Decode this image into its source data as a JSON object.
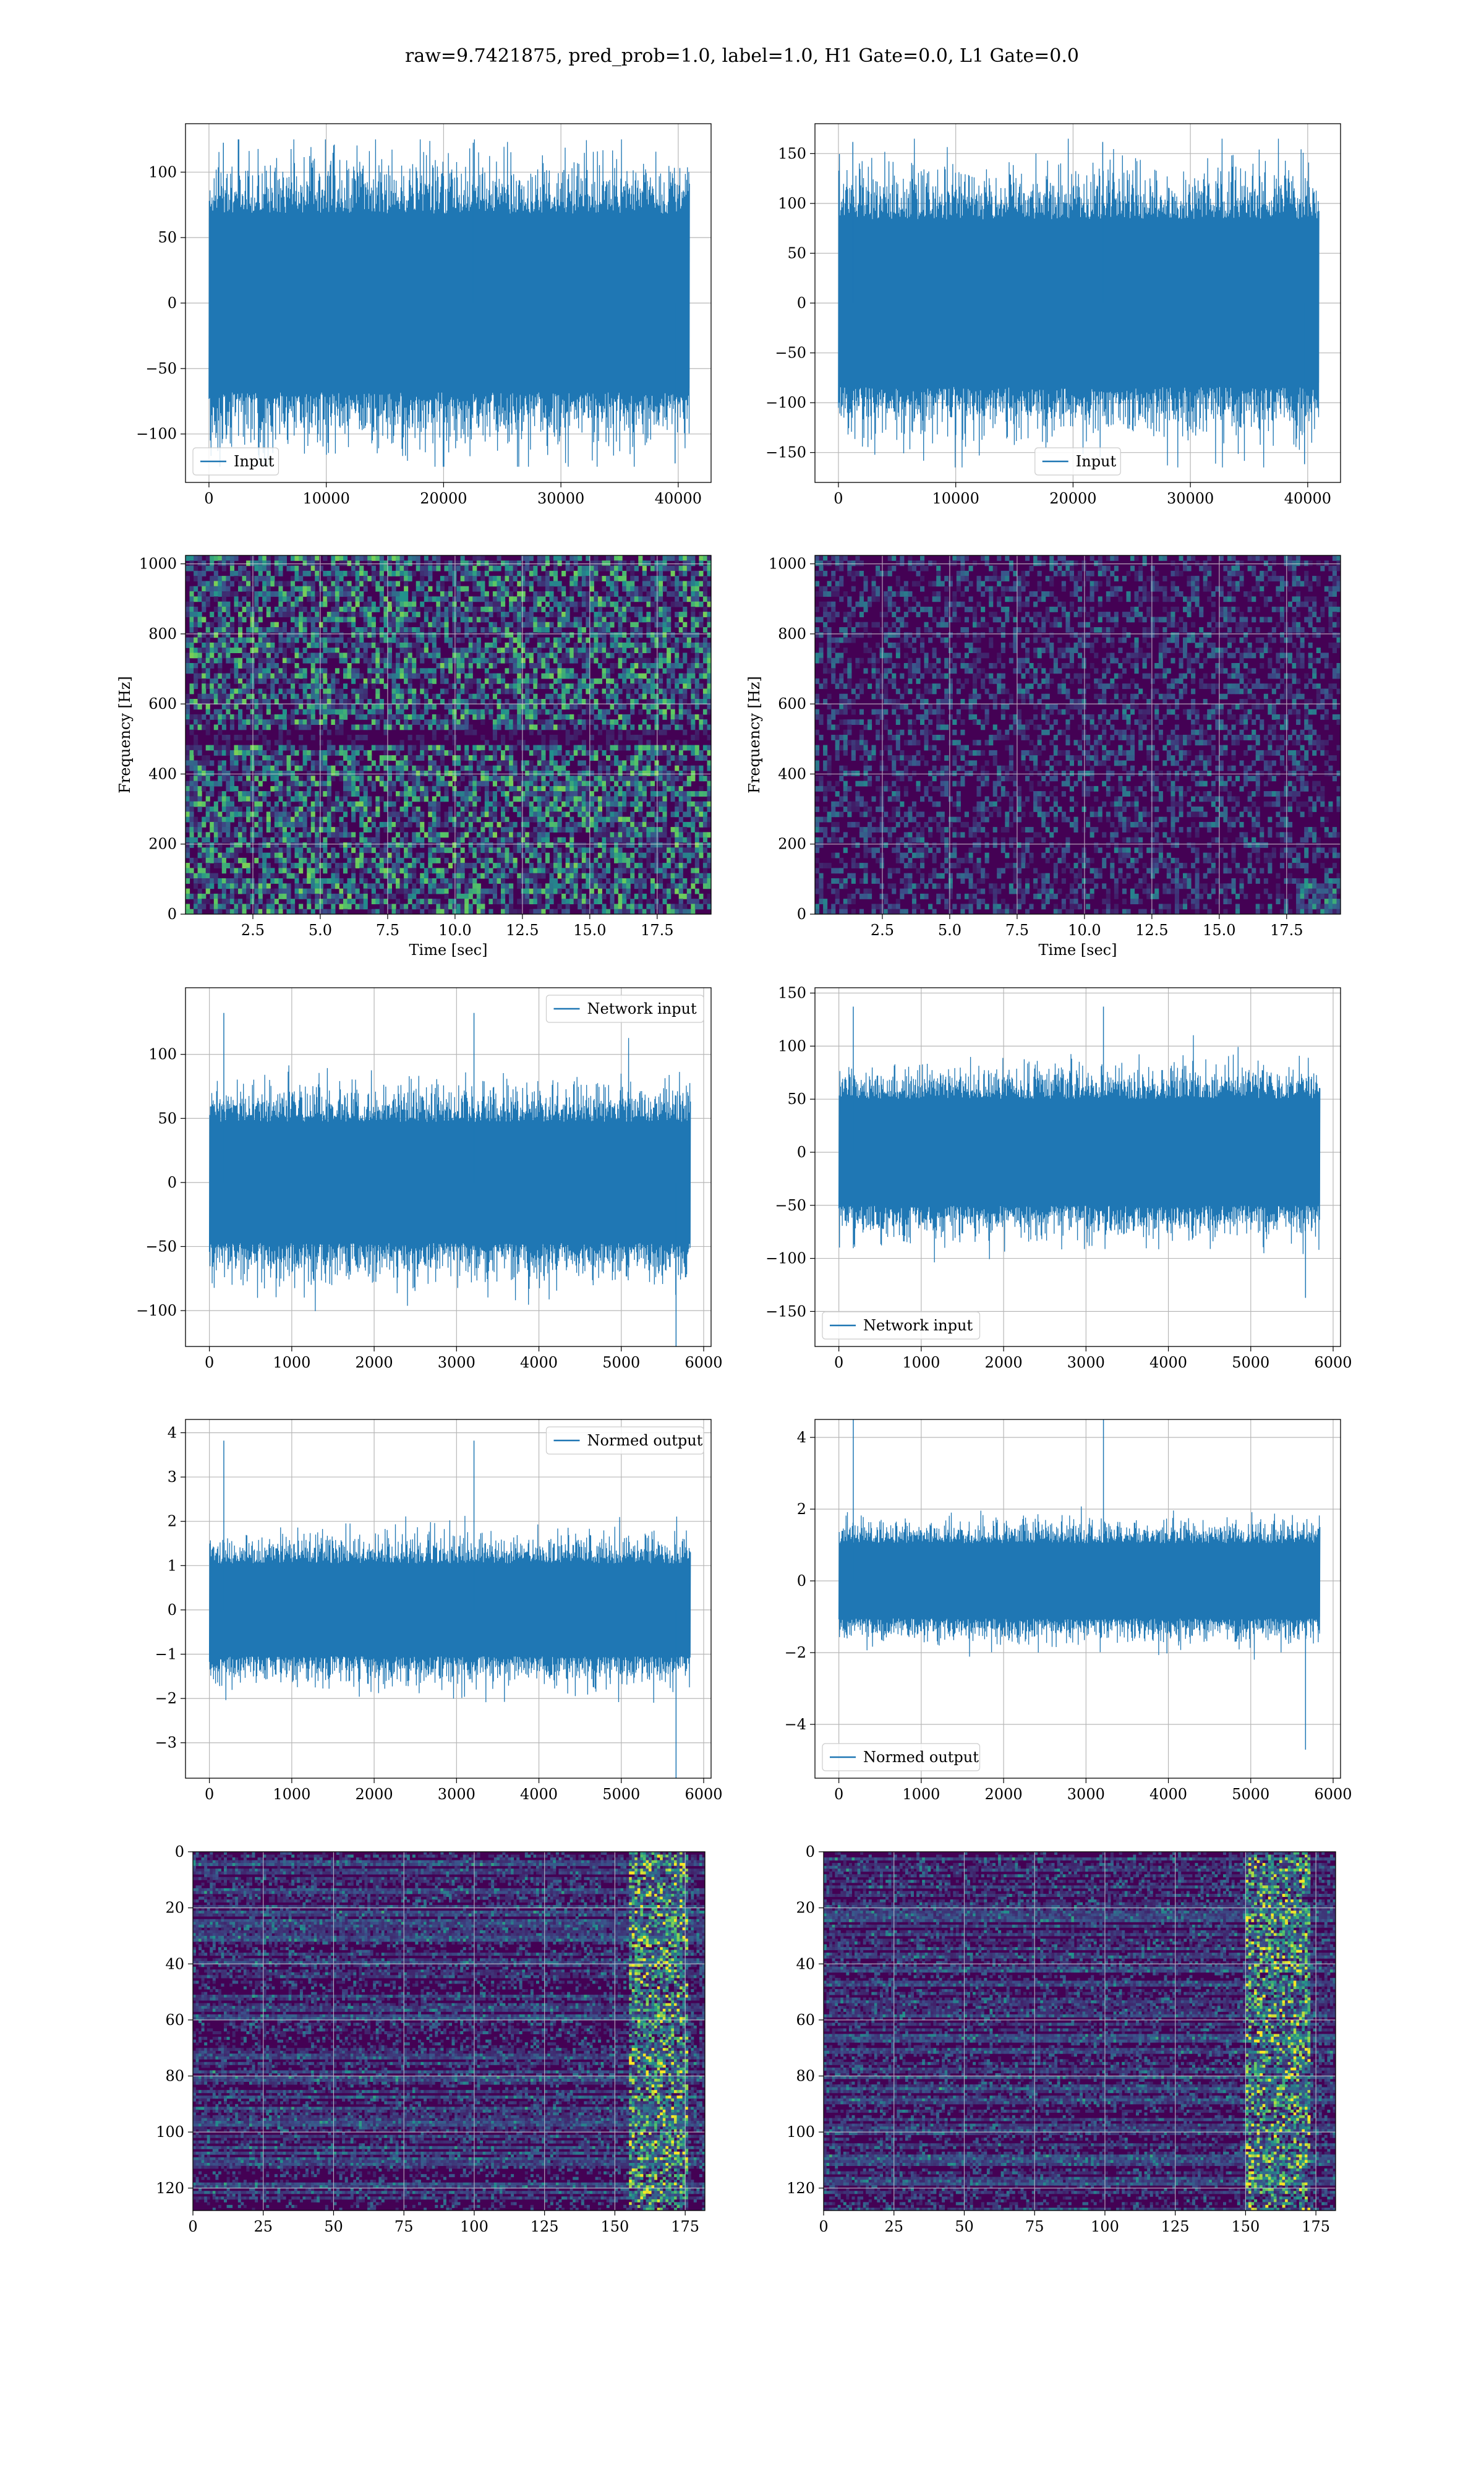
{
  "figure": {
    "suptitle": "raw=9.7421875, pred_prob=1.0, label=1.0, H1 Gate=0.0, L1 Gate=0.0"
  },
  "colors": {
    "line": "#1f77b4",
    "grid": "#b0b0b0",
    "axes": "#000000",
    "viridis": [
      "#440154",
      "#3b528b",
      "#21918c",
      "#5ec962",
      "#fde725"
    ]
  },
  "chart_data": [
    {
      "id": "ts-h1-input",
      "type": "line",
      "legend": "Input",
      "legend_loc": "lower left",
      "xlim": [
        -2000,
        42800
      ],
      "ylim": [
        -137,
        137
      ],
      "n": 40960,
      "xticks": [
        0,
        10000,
        20000,
        30000,
        40000
      ],
      "xtick_labels": [
        "0",
        "10000",
        "20000",
        "30000",
        "40000"
      ],
      "yticks": [
        -100,
        -50,
        0,
        50,
        100
      ],
      "ytick_labels": [
        "−100",
        "−50",
        "0",
        "50",
        "100"
      ],
      "band": 65,
      "peak": 125,
      "grid": true
    },
    {
      "id": "ts-l1-input",
      "type": "line",
      "legend": "Input",
      "legend_loc": "lower center",
      "xlim": [
        -2000,
        42800
      ],
      "ylim": [
        -180,
        180
      ],
      "n": 40960,
      "xticks": [
        0,
        10000,
        20000,
        30000,
        40000
      ],
      "xtick_labels": [
        "0",
        "10000",
        "20000",
        "30000",
        "40000"
      ],
      "yticks": [
        -150,
        -100,
        -50,
        0,
        50,
        100,
        150
      ],
      "ytick_labels": [
        "−150",
        "−100",
        "−50",
        "0",
        "50",
        "100",
        "150"
      ],
      "band": 80,
      "peak": 165,
      "grid": true
    },
    {
      "id": "spec-h1",
      "type": "heatmap",
      "xlabel": "Time [sec]",
      "ylabel": "Frequency [Hz]",
      "xlim": [
        0,
        19.5
      ],
      "ylim": [
        0,
        1024
      ],
      "colormap": "viridis",
      "xticks": [
        2.5,
        5.0,
        7.5,
        10.0,
        12.5,
        15.0,
        17.5
      ],
      "xtick_labels": [
        "2.5",
        "5.0",
        "7.5",
        "10.0",
        "12.5",
        "15.0",
        "17.5"
      ],
      "yticks": [
        0,
        200,
        400,
        600,
        800,
        1000
      ],
      "ytick_labels": [
        "0",
        "200",
        "400",
        "600",
        "800",
        "1000"
      ],
      "grid": true,
      "intensity": "high",
      "dark_band_hz": [
        480,
        520
      ]
    },
    {
      "id": "spec-l1",
      "type": "heatmap",
      "xlabel": "Time [sec]",
      "ylabel": "Frequency [Hz]",
      "xlim": [
        0,
        19.5
      ],
      "ylim": [
        0,
        1024
      ],
      "colormap": "viridis",
      "xticks": [
        2.5,
        5.0,
        7.5,
        10.0,
        12.5,
        15.0,
        17.5
      ],
      "xtick_labels": [
        "2.5",
        "5.0",
        "7.5",
        "10.0",
        "12.5",
        "15.0",
        "17.5"
      ],
      "yticks": [
        0,
        200,
        400,
        600,
        800,
        1000
      ],
      "ytick_labels": [
        "0",
        "200",
        "400",
        "600",
        "800",
        "1000"
      ],
      "grid": true,
      "intensity": "low"
    },
    {
      "id": "ts-h1-net",
      "type": "line",
      "legend": "Network input",
      "legend_loc": "upper right",
      "xlim": [
        -290,
        6090
      ],
      "ylim": [
        -128,
        152
      ],
      "n": 5840,
      "xticks": [
        0,
        1000,
        2000,
        3000,
        4000,
        5000,
        6000
      ],
      "xtick_labels": [
        "0",
        "1000",
        "2000",
        "3000",
        "4000",
        "5000",
        "6000"
      ],
      "yticks": [
        -100,
        -50,
        0,
        50,
        100
      ],
      "ytick_labels": [
        "−100",
        "−50",
        "0",
        "50",
        "100"
      ],
      "band": 45,
      "peak": 135,
      "grid": true
    },
    {
      "id": "ts-l1-net",
      "type": "line",
      "legend": "Network input",
      "legend_loc": "lower left",
      "xlim": [
        -290,
        6090
      ],
      "ylim": [
        -183,
        155
      ],
      "n": 5840,
      "xticks": [
        0,
        1000,
        2000,
        3000,
        4000,
        5000,
        6000
      ],
      "xtick_labels": [
        "0",
        "1000",
        "2000",
        "3000",
        "4000",
        "5000",
        "6000"
      ],
      "yticks": [
        -150,
        -100,
        -50,
        0,
        50,
        100,
        150
      ],
      "ytick_labels": [
        "−150",
        "−100",
        "−50",
        "0",
        "50",
        "100",
        "150"
      ],
      "band": 48,
      "peak": 140,
      "grid": true
    },
    {
      "id": "ts-h1-out",
      "type": "line",
      "legend": "Normed output",
      "legend_loc": "upper right",
      "xlim": [
        -290,
        6090
      ],
      "ylim": [
        -3.8,
        4.3
      ],
      "n": 5840,
      "xticks": [
        0,
        1000,
        2000,
        3000,
        4000,
        5000,
        6000
      ],
      "xtick_labels": [
        "0",
        "1000",
        "2000",
        "3000",
        "4000",
        "5000",
        "6000"
      ],
      "yticks": [
        -3,
        -2,
        -1,
        0,
        1,
        2,
        3,
        4
      ],
      "ytick_labels": [
        "−3",
        "−2",
        "−1",
        "0",
        "1",
        "2",
        "3",
        "4"
      ],
      "band": 1.0,
      "peak": 3.9,
      "grid": true
    },
    {
      "id": "ts-l1-out",
      "type": "line",
      "legend": "Normed output",
      "legend_loc": "lower left",
      "xlim": [
        -290,
        6090
      ],
      "ylim": [
        -5.5,
        4.5
      ],
      "n": 5840,
      "xticks": [
        0,
        1000,
        2000,
        3000,
        4000,
        5000,
        6000
      ],
      "xtick_labels": [
        "0",
        "1000",
        "2000",
        "3000",
        "4000",
        "5000",
        "6000"
      ],
      "yticks": [
        -4,
        -2,
        0,
        2,
        4
      ],
      "ytick_labels": [
        "−4",
        "−2",
        "0",
        "2",
        "4"
      ],
      "band": 1.0,
      "peak": 4.8,
      "grid": true
    },
    {
      "id": "feat-h1",
      "type": "heatmap",
      "colormap": "viridis",
      "xlim": [
        0,
        182
      ],
      "ylim": [
        128,
        0
      ],
      "xticks": [
        0,
        25,
        50,
        75,
        100,
        125,
        150,
        175
      ],
      "xtick_labels": [
        "0",
        "25",
        "50",
        "75",
        "100",
        "125",
        "150",
        "175"
      ],
      "yticks": [
        0,
        20,
        40,
        60,
        80,
        100,
        120
      ],
      "ytick_labels": [
        "0",
        "20",
        "40",
        "60",
        "80",
        "100",
        "120"
      ],
      "grid": true,
      "bright_columns": [
        155,
        175
      ]
    },
    {
      "id": "feat-l1",
      "type": "heatmap",
      "colormap": "viridis",
      "xlim": [
        0,
        182
      ],
      "ylim": [
        128,
        0
      ],
      "xticks": [
        0,
        25,
        50,
        75,
        100,
        125,
        150,
        175
      ],
      "xtick_labels": [
        "0",
        "25",
        "50",
        "75",
        "100",
        "125",
        "150",
        "175"
      ],
      "yticks": [
        0,
        20,
        40,
        60,
        80,
        100,
        120
      ],
      "ytick_labels": [
        "0",
        "20",
        "40",
        "60",
        "80",
        "100",
        "120"
      ],
      "grid": true,
      "bright_columns": [
        150,
        172
      ]
    }
  ]
}
